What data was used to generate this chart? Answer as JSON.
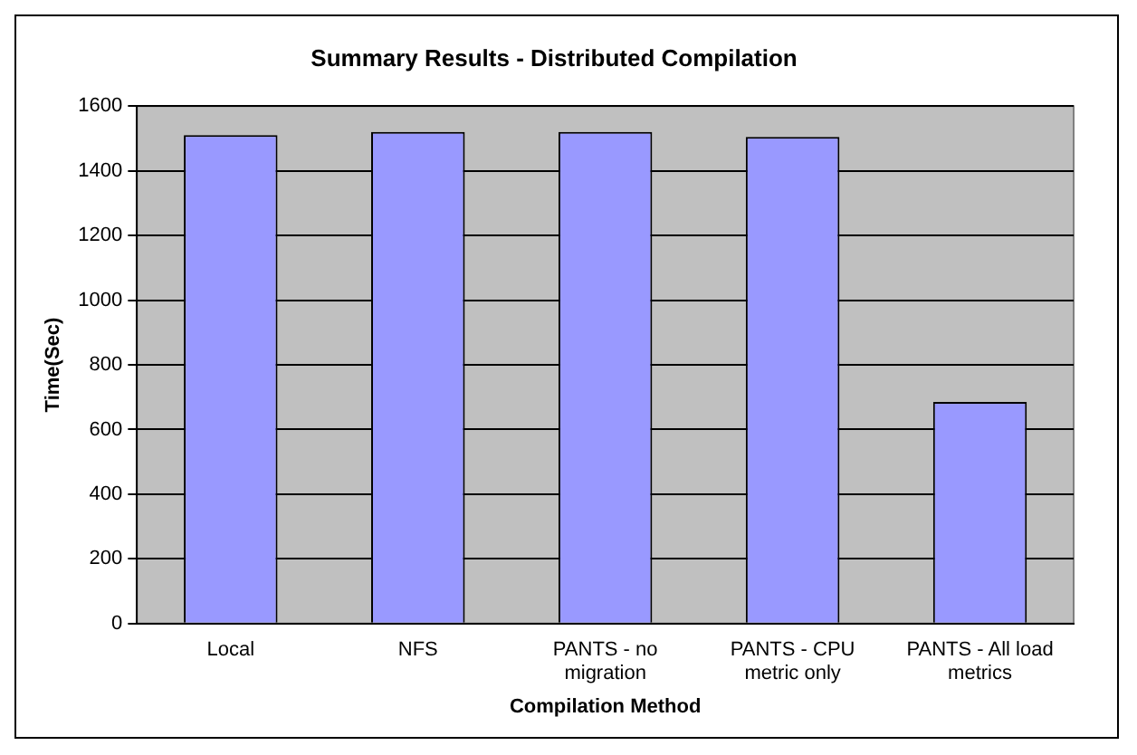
{
  "chart_data": {
    "type": "bar",
    "title": "Summary Results - Distributed Compilation",
    "xlabel": "Compilation Method",
    "ylabel": "Time(Sec)",
    "categories": [
      "Local",
      "NFS",
      "PANTS - no migration",
      "PANTS - CPU metric only",
      "PANTS - All load metrics"
    ],
    "values": [
      1510,
      1520,
      1520,
      1505,
      685
    ],
    "color": "#9999ff",
    "ylim": [
      0,
      1600
    ],
    "yticks": [
      0,
      200,
      400,
      600,
      800,
      1000,
      1200,
      1400,
      1600
    ],
    "grid": "y",
    "legend": false
  }
}
